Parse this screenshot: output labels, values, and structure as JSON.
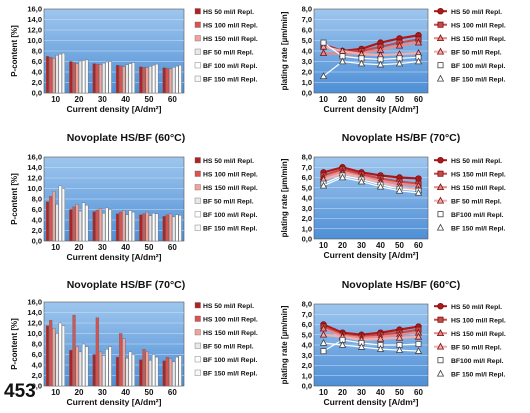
{
  "page_number": "453",
  "styles": {
    "plot_bg_top": "#9ec6ee",
    "plot_bg_bottom": "#4f8fd6",
    "bar_colors": [
      "#b22222",
      "#d9534f",
      "#f2a39b",
      "#e8e8e8",
      "#ffffff",
      "#f7f7f7"
    ],
    "line_colors": [
      "#b01818",
      "#c84a4a",
      "#e88a8a",
      "#f0b0b0",
      "#ffffff",
      "#ffffff"
    ],
    "markers": [
      "circle",
      "square",
      "triangle",
      "triangle",
      "square",
      "triangle"
    ]
  },
  "chart_data": [
    {
      "type": "bar",
      "title": "",
      "xlabel": "Current density [A/dm²]",
      "ylabel": "P-content [%]",
      "categories": [
        "10",
        "20",
        "30",
        "40",
        "50",
        "60"
      ],
      "ylim": [
        0,
        16
      ],
      "yticks": [
        "0,0",
        "2,0",
        "4,0",
        "6,0",
        "8,0",
        "10,0",
        "12,0",
        "14,0",
        "16,0"
      ],
      "grid": true,
      "legend": "right",
      "series": [
        {
          "name": "HS 50 ml/l Repl.",
          "values": [
            7.0,
            6.0,
            5.6,
            5.3,
            5.0,
            4.8
          ]
        },
        {
          "name": "HS 100 ml/l Repl.",
          "values": [
            6.8,
            5.8,
            5.5,
            5.2,
            4.9,
            4.7
          ]
        },
        {
          "name": "HS 150 ml/l Repl.",
          "values": [
            6.6,
            5.6,
            5.4,
            5.0,
            4.8,
            4.6
          ]
        },
        {
          "name": "BF 50 ml/l Repl.",
          "values": [
            7.2,
            6.1,
            5.7,
            5.4,
            5.1,
            4.9
          ]
        },
        {
          "name": "BF 100 ml/l Repl.",
          "values": [
            7.4,
            6.2,
            5.9,
            5.6,
            5.3,
            5.1
          ]
        },
        {
          "name": "BF 150 ml/l Repl.",
          "values": [
            7.6,
            6.3,
            6.0,
            5.8,
            5.5,
            5.3
          ]
        }
      ]
    },
    {
      "type": "line",
      "title": "",
      "xlabel": "Current density [A/dm²]",
      "ylabel": "plating rate [µm/min]",
      "x": [
        10,
        20,
        30,
        40,
        50,
        60
      ],
      "ylim": [
        0,
        8
      ],
      "yticks": [
        "0,0",
        "1,0",
        "2,0",
        "3,0",
        "4,0",
        "5,0",
        "6,0",
        "7,0",
        "8,0"
      ],
      "grid": true,
      "legend": "right",
      "series": [
        {
          "name": "HS 50 ml/l Repl.",
          "values": [
            4.6,
            4.0,
            4.2,
            4.8,
            5.2,
            5.5
          ]
        },
        {
          "name": "HS 100 ml/l Repl.",
          "values": [
            4.5,
            3.9,
            4.0,
            4.4,
            4.8,
            5.1
          ]
        },
        {
          "name": "HS 150 ml/l Repl.",
          "values": [
            3.8,
            3.7,
            3.8,
            4.1,
            4.5,
            4.8
          ]
        },
        {
          "name": "BF 50 ml/l Repl.",
          "values": [
            4.4,
            4.0,
            3.7,
            3.6,
            3.7,
            3.8
          ]
        },
        {
          "name": "BF 100 ml/l Repl.",
          "values": [
            4.8,
            3.5,
            3.3,
            3.2,
            3.3,
            3.4
          ]
        },
        {
          "name": "BF 150 ml/l Repl.",
          "values": [
            1.6,
            3.0,
            2.8,
            2.7,
            2.8,
            3.0
          ]
        }
      ]
    },
    {
      "type": "bar",
      "title": "Novoplate HS/BF (60°C)",
      "xlabel": "Current density [A/dm²]",
      "ylabel": "P-content [%]",
      "categories": [
        "10",
        "20",
        "30",
        "40",
        "50",
        "60"
      ],
      "ylim": [
        0,
        16
      ],
      "yticks": [
        "0,0",
        "2,0",
        "4,0",
        "6,0",
        "8,0",
        "10,0",
        "12,0",
        "14,0",
        "16,0"
      ],
      "grid": true,
      "legend": "right",
      "series": [
        {
          "name": "HS 50 ml/l Repl.",
          "values": [
            7.5,
            6.0,
            5.6,
            5.2,
            5.0,
            4.7
          ]
        },
        {
          "name": "HS 100 ml/l Repl.",
          "values": [
            8.5,
            6.5,
            5.9,
            5.5,
            5.2,
            5.0
          ]
        },
        {
          "name": "HS 150 ml/l Repl.",
          "values": [
            9.5,
            7.0,
            6.2,
            5.8,
            5.5,
            5.2
          ]
        },
        {
          "name": "BF 50 ml/l Repl.",
          "values": [
            7.0,
            5.7,
            5.3,
            5.0,
            4.8,
            4.6
          ]
        },
        {
          "name": "BF 100 ml/l Repl.",
          "values": [
            10.5,
            7.3,
            6.3,
            5.8,
            5.3,
            5.0
          ]
        },
        {
          "name": "BF 150 ml/l Repl.",
          "values": [
            10.0,
            6.8,
            6.0,
            5.5,
            5.2,
            4.9
          ]
        }
      ]
    },
    {
      "type": "line",
      "title": "Novoplate HS/BF (70°C)",
      "xlabel": "Current density [A/dm²]",
      "ylabel": "plating rate [µm/min]",
      "x": [
        10,
        20,
        30,
        40,
        50,
        60
      ],
      "ylim": [
        0,
        8
      ],
      "yticks": [
        "0,0",
        "1,0",
        "2,0",
        "3,0",
        "4,0",
        "5,0",
        "6,0",
        "7,0",
        "8,0"
      ],
      "grid": true,
      "legend": "right",
      "series": [
        {
          "name": "HS 50 ml/l Repl.",
          "values": [
            6.5,
            7.0,
            6.5,
            6.2,
            6.0,
            5.9
          ]
        },
        {
          "name": "HS 150 ml/l Repl.",
          "values": [
            6.2,
            6.8,
            6.3,
            5.9,
            5.6,
            5.4
          ]
        },
        {
          "name": "HS 150 ml/l Repl.",
          "values": [
            6.0,
            6.6,
            6.1,
            5.7,
            5.4,
            5.2
          ]
        },
        {
          "name": "BF 50 ml/l Repl.",
          "values": [
            5.8,
            6.4,
            6.0,
            5.5,
            5.1,
            4.8
          ]
        },
        {
          "name": "BF100 ml/l Repl.",
          "values": [
            5.4,
            6.2,
            5.8,
            5.3,
            4.9,
            4.7
          ]
        },
        {
          "name": "BF 150 ml/l Repl.",
          "values": [
            5.2,
            6.0,
            5.6,
            5.1,
            4.7,
            4.5
          ]
        }
      ]
    },
    {
      "type": "bar",
      "title": "Novoplate HS/BF (70°C)",
      "xlabel": "Current density [A/dm²]",
      "ylabel": "P-content [%]",
      "categories": [
        "10",
        "20",
        "30",
        "40",
        "50",
        "60"
      ],
      "ylim": [
        0,
        16
      ],
      "yticks": [
        "0,0",
        "2,0",
        "4,0",
        "6,0",
        "8,0",
        "10,0",
        "12,0",
        "14,0",
        "16,0"
      ],
      "grid": true,
      "legend": "right",
      "series": [
        {
          "name": "HS 50 ml/l Repl.",
          "values": [
            11.5,
            6.8,
            6.0,
            5.5,
            5.0,
            4.8
          ]
        },
        {
          "name": "HS 100 ml/l Repl.",
          "values": [
            12.5,
            13.5,
            13.0,
            10.0,
            7.0,
            5.5
          ]
        },
        {
          "name": "HS 150 ml/l Repl.",
          "values": [
            11.0,
            7.5,
            6.5,
            9.0,
            6.5,
            5.2
          ]
        },
        {
          "name": "BF 50 ml/l Repl.",
          "values": [
            10.0,
            6.5,
            5.8,
            5.3,
            4.9,
            4.6
          ]
        },
        {
          "name": "BF 100 ml/l Repl.",
          "values": [
            12.0,
            8.0,
            7.0,
            6.5,
            6.0,
            5.5
          ]
        },
        {
          "name": "BF 150 ml/l Repl.",
          "values": [
            11.5,
            7.5,
            7.5,
            6.0,
            5.5,
            5.8
          ]
        }
      ]
    },
    {
      "type": "line",
      "title": "Novoplate HS/BF (60°C)",
      "xlabel": "Current density [A/dm²]",
      "ylabel": "plating rate [µm/min]",
      "x": [
        10,
        20,
        30,
        40,
        50,
        60
      ],
      "ylim": [
        0,
        8
      ],
      "yticks": [
        "0,0",
        "1,0",
        "2,0",
        "3,0",
        "4,0",
        "5,0",
        "6,0",
        "7,0",
        "8,0"
      ],
      "grid": true,
      "legend": "right",
      "series": [
        {
          "name": "HS 50 ml/l Repl.",
          "values": [
            6.0,
            5.2,
            5.0,
            5.2,
            5.5,
            5.8
          ]
        },
        {
          "name": "HS 100 ml/l Repl.",
          "values": [
            5.8,
            5.0,
            4.8,
            5.0,
            5.2,
            5.5
          ]
        },
        {
          "name": "HS 150 ml/l Repl.",
          "values": [
            5.6,
            4.9,
            4.7,
            4.8,
            5.0,
            5.2
          ]
        },
        {
          "name": "BF 50 ml/l Repl.",
          "values": [
            5.0,
            4.8,
            4.5,
            4.6,
            4.7,
            4.8
          ]
        },
        {
          "name": "BF100 ml/l Repl.",
          "values": [
            3.4,
            4.5,
            4.2,
            4.0,
            4.0,
            4.1
          ]
        },
        {
          "name": "BF 150 ml/l Repl.",
          "values": [
            4.2,
            4.0,
            3.8,
            3.6,
            3.5,
            3.4
          ]
        }
      ]
    }
  ]
}
